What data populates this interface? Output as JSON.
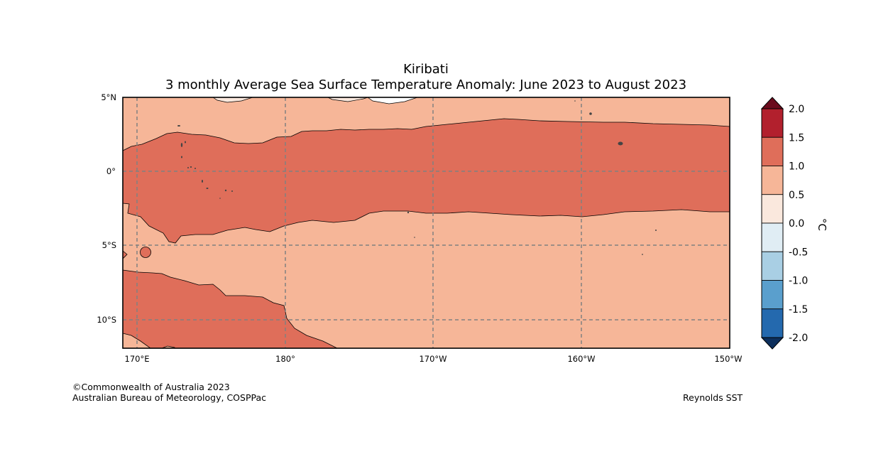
{
  "title": "Kiribati",
  "subtitle": "3 monthly Average Sea Surface Temperature Anomaly: June 2023 to August 2023",
  "map": {
    "lat_labels": [
      "5°N",
      "0°",
      "5°S",
      "10°S"
    ],
    "lon_labels": [
      "170°E",
      "180°",
      "170°W",
      "160°W",
      "150°W"
    ]
  },
  "colorbar": {
    "unit": "°C",
    "ticks": [
      "2.0",
      "1.5",
      "1.0",
      "0.5",
      "0.0",
      "-0.5",
      "-1.0",
      "-1.5",
      "-2.0"
    ],
    "colors": [
      "#b2202d",
      "#df6e5a",
      "#f6b698",
      "#fae8dd",
      "#e0edf4",
      "#a9cfe4",
      "#5a9fcd",
      "#2469ae"
    ],
    "over_color": "#6b0b1d",
    "under_color": "#0d2f5c"
  },
  "footer": {
    "copyright": "©Commonwealth of Australia 2023",
    "agency": "Australian Bureau of Meteorology, COSPPac",
    "source": "Reynolds SST"
  }
}
